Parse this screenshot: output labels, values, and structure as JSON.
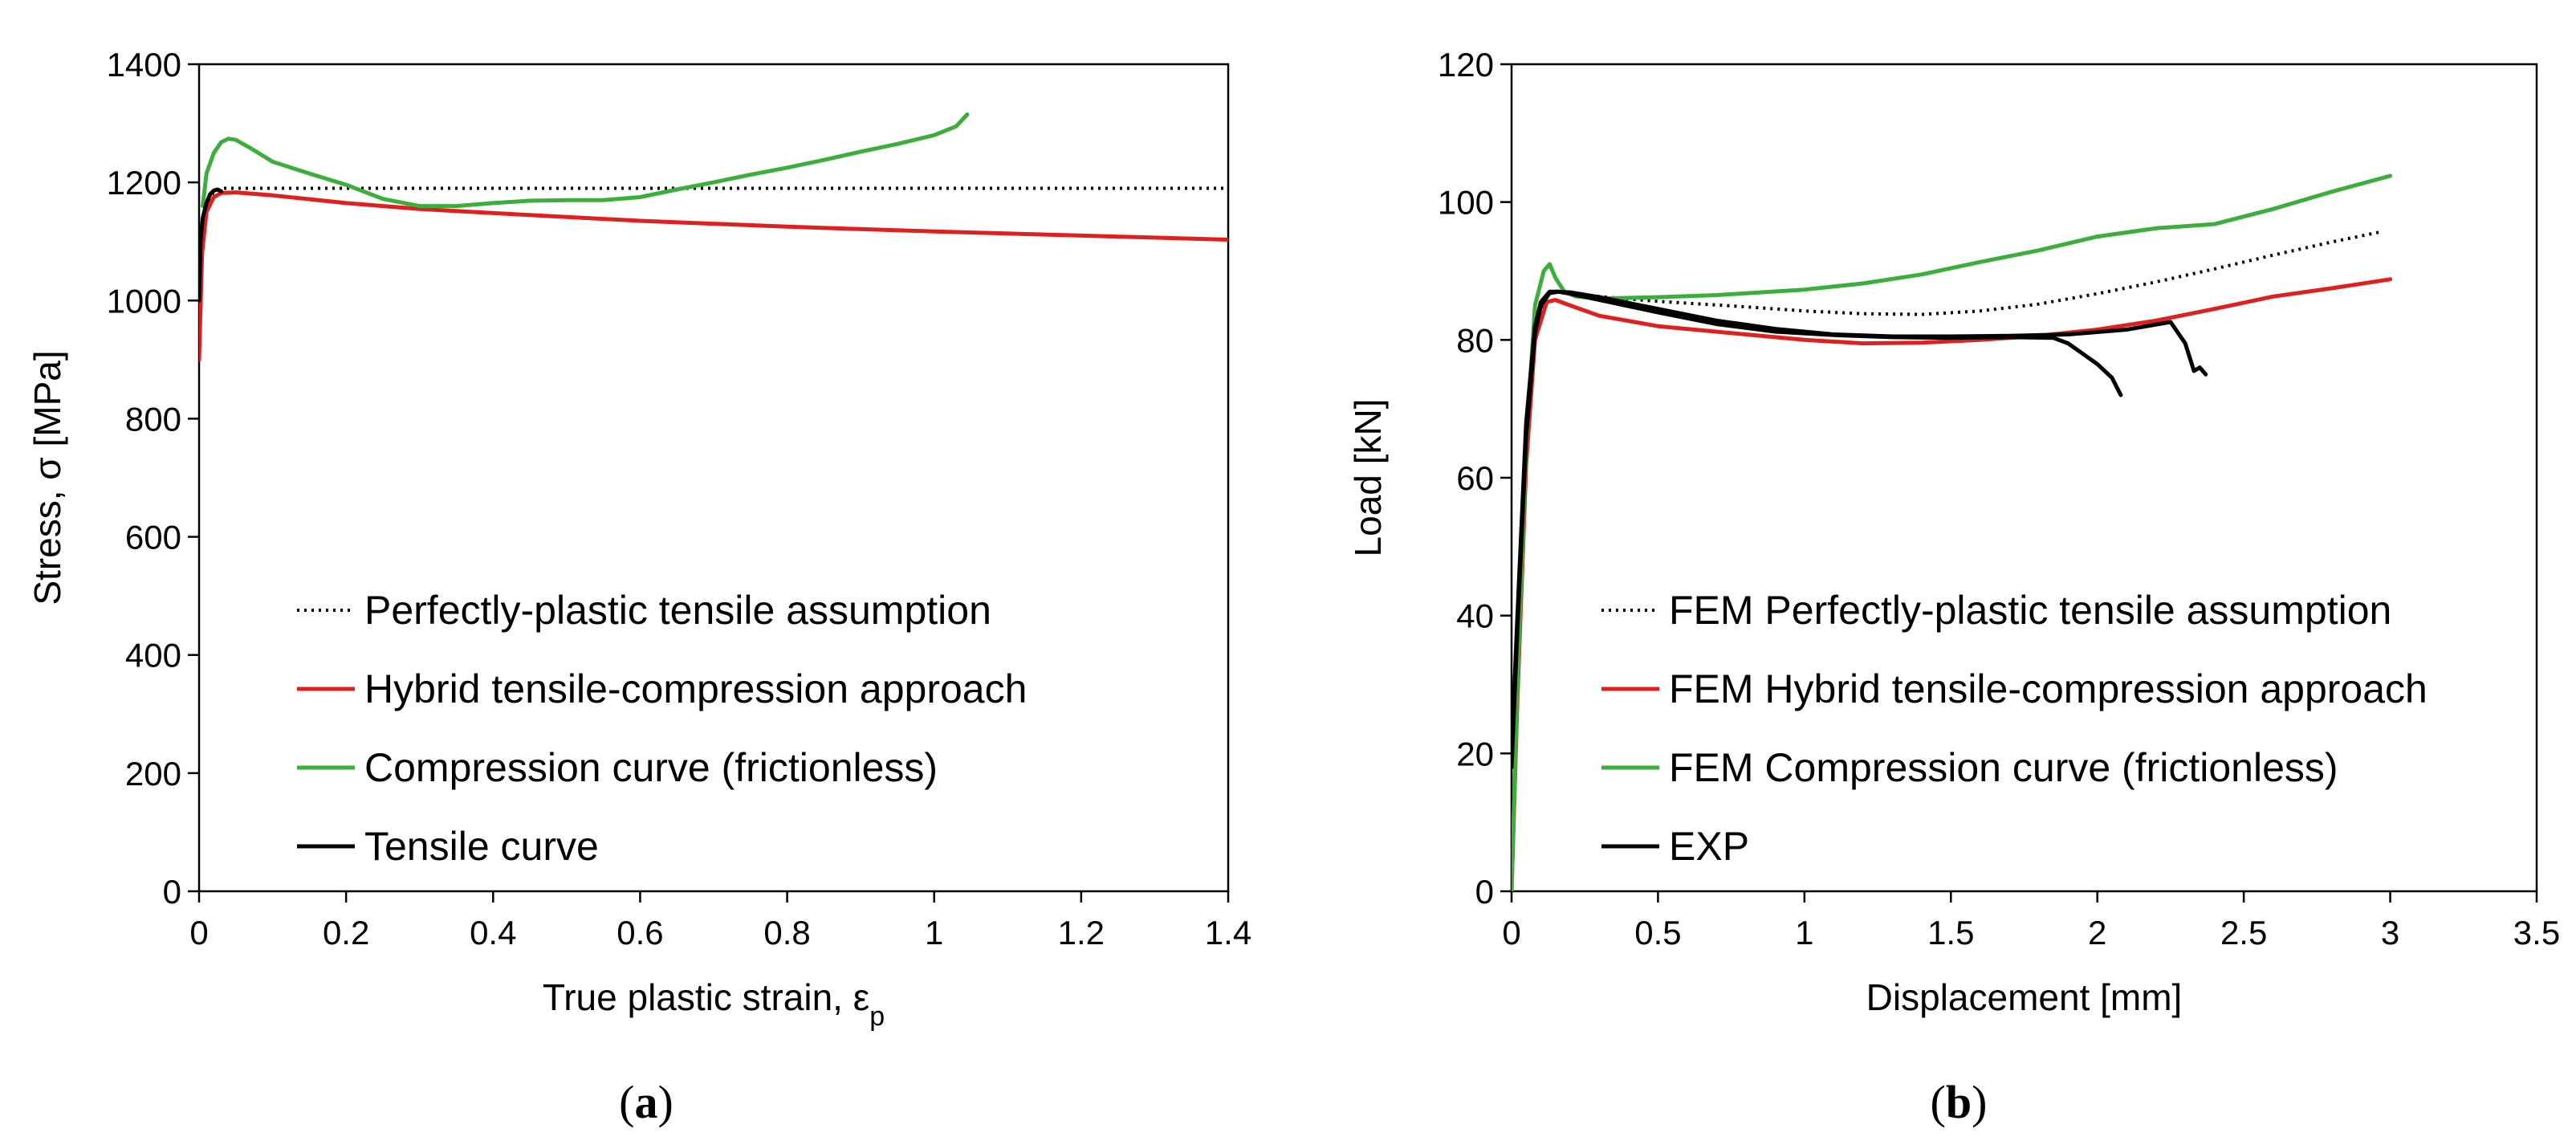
{
  "chart_data": [
    {
      "type": "line",
      "panel_label": "(a)",
      "panel_letter": "a",
      "xlabel": "True plastic strain, ε",
      "xlabel_sub": "p",
      "ylabel": "Stress, σ [MPa]",
      "xlim": [
        0,
        1.4
      ],
      "ylim": [
        0,
        1400
      ],
      "x_ticks": [
        0,
        0.2,
        0.4,
        0.6,
        0.8,
        1,
        1.2,
        1.4
      ],
      "x_tick_labels": [
        "0",
        "0.2",
        "0.4",
        "0.6",
        "0.8",
        "1",
        "1.2",
        "1.4"
      ],
      "y_ticks": [
        0,
        200,
        400,
        600,
        800,
        1000,
        1200,
        1400
      ],
      "y_tick_labels": [
        "0",
        "200",
        "400",
        "600",
        "800",
        "1000",
        "1200",
        "1400"
      ],
      "grid": false,
      "legend_position": "lower-center",
      "series": [
        {
          "name": "Perfectly-plastic tensile assumption",
          "color": "#000000",
          "style": "dotted",
          "x": [
            0,
            0.004,
            0.01,
            0.02,
            0.03,
            0.05,
            0.2,
            0.5,
            1.0,
            1.4
          ],
          "y": [
            950,
            1120,
            1160,
            1185,
            1190,
            1190,
            1190,
            1190,
            1190,
            1190
          ]
        },
        {
          "name": "Hybrid tensile-compression approach",
          "color": "#e02020",
          "style": "solid",
          "x": [
            0,
            0.004,
            0.01,
            0.02,
            0.03,
            0.05,
            0.1,
            0.2,
            0.3,
            0.4,
            0.6,
            0.8,
            1.0,
            1.2,
            1.4
          ],
          "y": [
            900,
            1080,
            1150,
            1175,
            1182,
            1183,
            1178,
            1165,
            1155,
            1148,
            1135,
            1125,
            1117,
            1110,
            1103
          ]
        },
        {
          "name": "Compression curve (frictionless)",
          "color": "#3cae3c",
          "style": "solid",
          "x": [
            0.005,
            0.01,
            0.02,
            0.03,
            0.04,
            0.05,
            0.07,
            0.1,
            0.15,
            0.2,
            0.25,
            0.3,
            0.35,
            0.4,
            0.45,
            0.5,
            0.55,
            0.6,
            0.65,
            0.7,
            0.75,
            0.8,
            0.85,
            0.9,
            0.95,
            1.0,
            1.03,
            1.045
          ],
          "y": [
            1160,
            1215,
            1250,
            1268,
            1274,
            1272,
            1258,
            1235,
            1215,
            1196,
            1172,
            1160,
            1160,
            1165,
            1169,
            1170,
            1170,
            1175,
            1188,
            1200,
            1213,
            1225,
            1238,
            1252,
            1265,
            1280,
            1295,
            1315
          ]
        },
        {
          "name": "Tensile curve",
          "color": "#000000",
          "style": "solid",
          "x": [
            0,
            0.002,
            0.005,
            0.01,
            0.015,
            0.02,
            0.025,
            0.03
          ],
          "y": [
            1000,
            1100,
            1140,
            1165,
            1180,
            1186,
            1188,
            1185
          ]
        }
      ]
    },
    {
      "type": "line",
      "panel_label": "(b)",
      "panel_letter": "b",
      "xlabel": "Displacement [mm]",
      "ylabel": "Load [kN]",
      "xlim": [
        0,
        3.5
      ],
      "ylim": [
        0,
        120
      ],
      "x_ticks": [
        0,
        0.5,
        1,
        1.5,
        2,
        2.5,
        3,
        3.5
      ],
      "x_tick_labels": [
        "0",
        "0.5",
        "1",
        "1.5",
        "2",
        "2.5",
        "3",
        "3.5"
      ],
      "y_ticks": [
        0,
        20,
        40,
        60,
        80,
        100,
        120
      ],
      "y_tick_labels": [
        "0",
        "20",
        "40",
        "60",
        "80",
        "100",
        "120"
      ],
      "grid": false,
      "legend_position": "lower-center",
      "series": [
        {
          "name": "FEM Perfectly-plastic tensile assumption",
          "color": "#000000",
          "style": "dotted",
          "x": [
            0,
            0.02,
            0.05,
            0.08,
            0.12,
            0.15,
            0.2,
            0.3,
            0.5,
            0.8,
            1.0,
            1.2,
            1.4,
            1.6,
            1.8,
            2.0,
            2.2,
            2.4,
            2.6,
            2.8,
            2.97
          ],
          "y": [
            0,
            30,
            65,
            82,
            86.5,
            87,
            86.8,
            86.3,
            85.6,
            84.8,
            84.2,
            83.8,
            83.7,
            84.2,
            85.2,
            86.7,
            88.4,
            90.3,
            92.3,
            94.2,
            95.7
          ]
        },
        {
          "name": "FEM Hybrid tensile-compression approach",
          "color": "#e02020",
          "style": "solid",
          "x": [
            0,
            0.02,
            0.05,
            0.08,
            0.12,
            0.15,
            0.2,
            0.3,
            0.5,
            0.8,
            1.0,
            1.2,
            1.4,
            1.6,
            1.8,
            2.0,
            2.2,
            2.4,
            2.6,
            2.8,
            3.0
          ],
          "y": [
            0,
            28,
            62,
            80,
            85.5,
            85.8,
            85,
            83.5,
            82,
            80.8,
            80,
            79.5,
            79.6,
            80,
            80.6,
            81.5,
            82.8,
            84.5,
            86.3,
            87.5,
            88.8
          ]
        },
        {
          "name": "FEM Compression curve (frictionless)",
          "color": "#3cae3c",
          "style": "solid",
          "x": [
            0,
            0.02,
            0.05,
            0.08,
            0.11,
            0.13,
            0.15,
            0.18,
            0.22,
            0.3,
            0.5,
            0.7,
            1.0,
            1.2,
            1.4,
            1.6,
            1.8,
            2.0,
            2.2,
            2.4,
            2.6,
            2.8,
            3.0
          ],
          "y": [
            0,
            30,
            65,
            85,
            90,
            91,
            89,
            87,
            86.3,
            86,
            86.2,
            86.5,
            87.3,
            88.2,
            89.5,
            91.3,
            93,
            95,
            96.2,
            96.8,
            99,
            101.5,
            103.8
          ]
        },
        {
          "name": "EXP",
          "color": "#000000",
          "style": "solid",
          "x": [
            0,
            0.02,
            0.05,
            0.08,
            0.1,
            0.13,
            0.16,
            0.2,
            0.3,
            0.5,
            0.7,
            0.9,
            1.1,
            1.3,
            1.5,
            1.7,
            1.85,
            1.9,
            1.95,
            2.0,
            2.05,
            2.08
          ],
          "y": [
            20,
            40,
            68,
            82,
            85.5,
            87,
            87,
            86.7,
            85.8,
            84,
            82.3,
            81.2,
            80.7,
            80.4,
            80.3,
            80.4,
            80.3,
            79.5,
            78,
            76.5,
            74.5,
            72
          ]
        },
        {
          "name": "EXP",
          "color": "#000000",
          "style": "solid",
          "legend": false,
          "x": [
            0,
            0.02,
            0.05,
            0.08,
            0.1,
            0.13,
            0.16,
            0.2,
            0.3,
            0.5,
            0.7,
            0.9,
            1.1,
            1.3,
            1.5,
            1.7,
            1.9,
            2.1,
            2.25,
            2.3,
            2.33,
            2.35,
            2.37
          ],
          "y": [
            18,
            38,
            66,
            81,
            85,
            86.8,
            87,
            86.9,
            86.2,
            84.5,
            82.8,
            81.6,
            80.8,
            80.5,
            80.5,
            80.6,
            80.8,
            81.5,
            82.6,
            79.5,
            75.5,
            76,
            75
          ]
        }
      ]
    }
  ]
}
